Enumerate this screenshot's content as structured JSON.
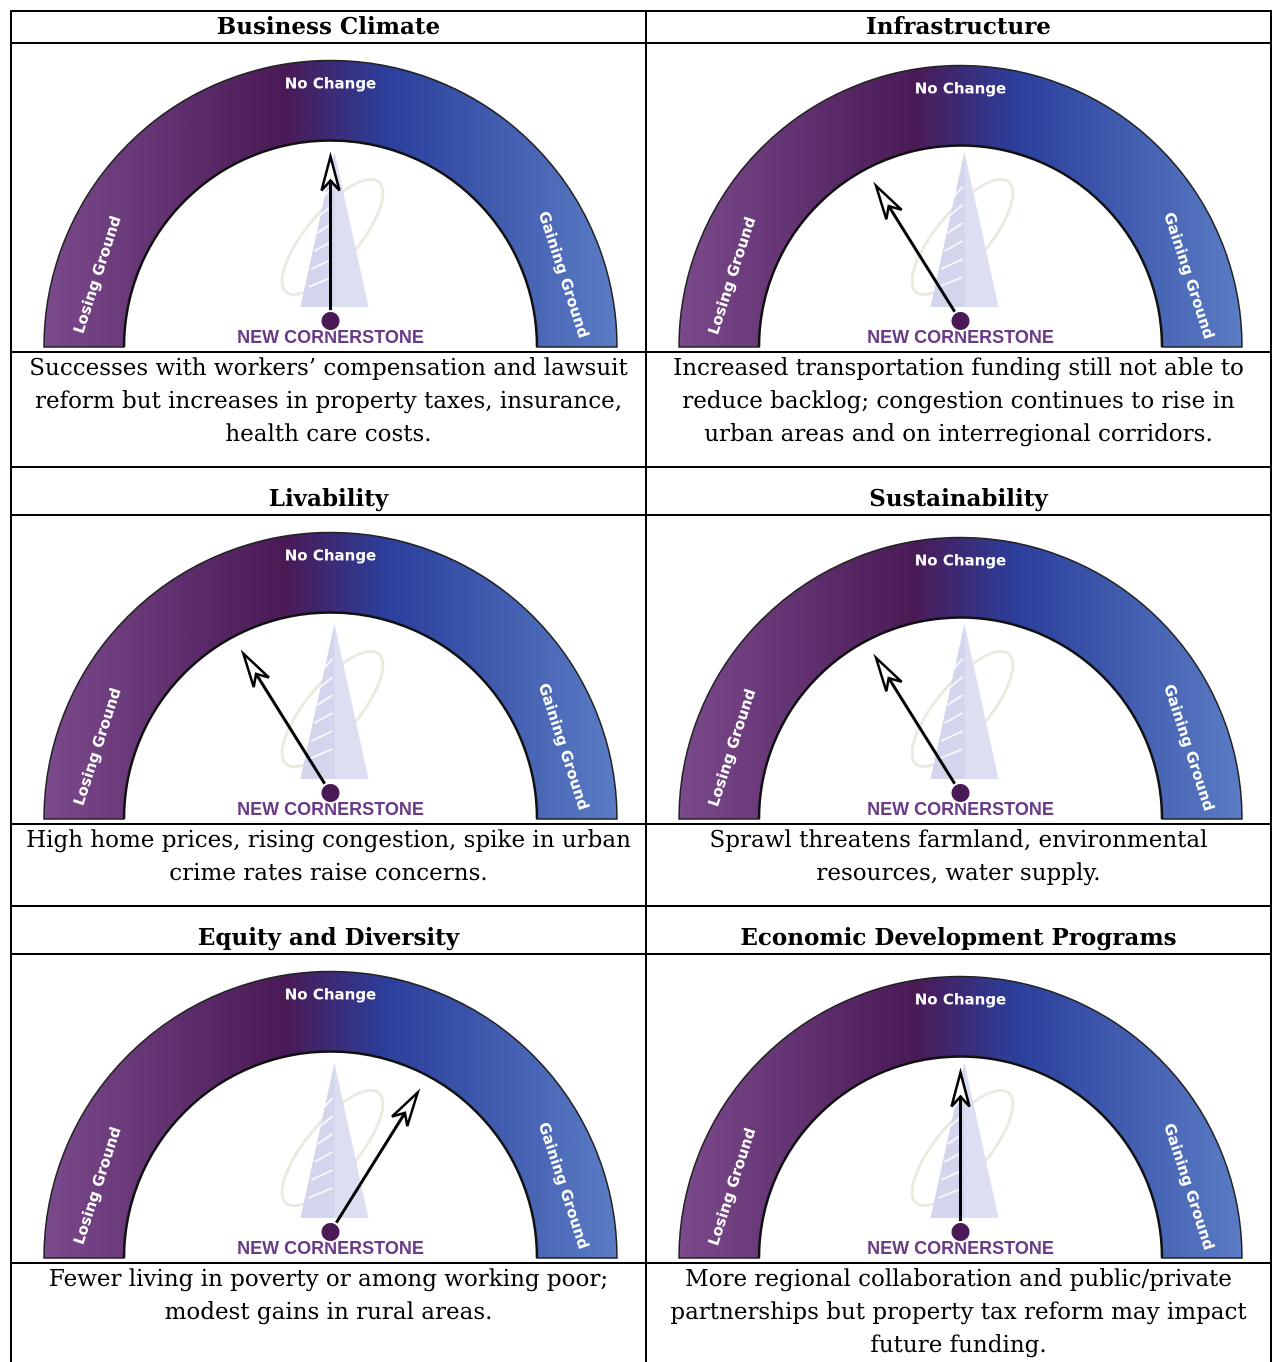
{
  "gauge_labels": {
    "top": "No Change",
    "left": "Losing Ground",
    "right": "Gaining Ground",
    "brand": "NEW CORNERSTONE"
  },
  "colors": {
    "purple_light": "#7a4a8c",
    "purple_dark": "#4a1a56",
    "blue_mid": "#2b3f9c",
    "blue_light": "#5a7cc4",
    "needle_hub": "#4a1a56",
    "brand_text": "#6a3b86"
  },
  "panels": [
    {
      "title": "Business Climate",
      "gauge_position": "no change (pointing up)",
      "description": "Successes with workers’ compensation and lawsuit reform but increases in property taxes, insurance, health care costs."
    },
    {
      "title": "Infrastructure",
      "gauge_position": "between losing ground and no change",
      "description": "Increased transportation funding still not able to reduce backlog; congestion continues to rise in urban areas and on interregional corridors."
    },
    {
      "title": "Livability",
      "gauge_position": "between losing ground and no change",
      "description": "High home prices, rising congestion, spike in urban crime rates raise concerns."
    },
    {
      "title": "Sustainability",
      "gauge_position": "between losing ground and no change",
      "description": "Sprawl threatens farmland, environmental resources, water supply."
    },
    {
      "title": "Equity and Diversity",
      "gauge_position": "between no change and gaining ground",
      "description": "Fewer living in poverty or among working poor; modest gains in rural areas."
    },
    {
      "title": "Economic Development Programs",
      "gauge_position": "no change (pointing up)",
      "description": "More regional collaboration and public/private partnerships but property tax reform may impact future funding."
    }
  ]
}
